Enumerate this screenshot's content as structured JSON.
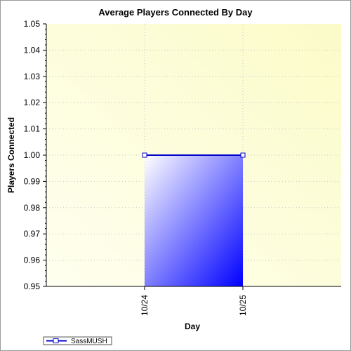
{
  "chart_data": {
    "type": "area",
    "title": "Average Players Connected By Day",
    "xlabel": "Day",
    "ylabel": "Players Connected",
    "categories": [
      "10/24",
      "10/25"
    ],
    "series": [
      {
        "name": "SassMUSH",
        "values": [
          1.0,
          1.0
        ],
        "color": "#0000ff"
      }
    ],
    "ylim": [
      0.95,
      1.05
    ],
    "yticks": [
      "0.95",
      "0.96",
      "0.97",
      "0.98",
      "0.99",
      "1.00",
      "1.01",
      "1.02",
      "1.03",
      "1.04",
      "1.05"
    ],
    "grid": true,
    "legend_position": "bottom-left",
    "colors": {
      "plot_background": "#fffff0",
      "plot_background_edge": "#fbfbc8",
      "area_fill_light": "#ffffff",
      "area_fill_dark": "#0000ff",
      "line": "#0000cc"
    }
  }
}
